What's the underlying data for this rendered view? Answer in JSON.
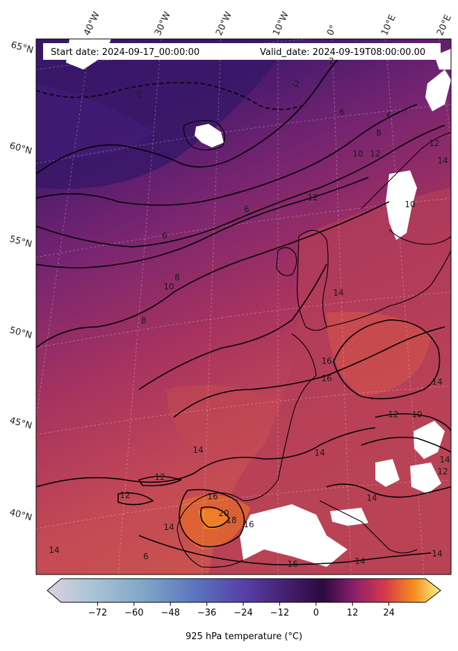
{
  "header": {
    "start_date": "Start date: 2024-09-17_00:00:00",
    "valid_date": "Valid_date: 2024-09-19T08:00:00.00"
  },
  "lon_labels": [
    "40°W",
    "30°W",
    "20°W",
    "10°W",
    "0°",
    "10°E",
    "20°E"
  ],
  "lat_labels": [
    "65°N",
    "60°N",
    "55°N",
    "50°N",
    "45°N",
    "40°N"
  ],
  "contour_labels": [
    "0",
    "-2",
    "2",
    "6",
    "6",
    "8",
    "10",
    "12",
    "6",
    "6",
    "12",
    "8",
    "10",
    "8",
    "14",
    "14",
    "16",
    "12",
    "10",
    "14",
    "14",
    "12",
    "12",
    "14",
    "16",
    "20",
    "18",
    "16",
    "14",
    "16",
    "14",
    "14",
    "12",
    "14",
    "6",
    "14",
    "16",
    "12",
    "10",
    "14"
  ],
  "colorbar": {
    "label": "925 hPa temperature ($^\\circ$C)",
    "label_display": "925 hPa temperature (°C)",
    "ticks": [
      "−72",
      "−60",
      "−48",
      "−36",
      "−24",
      "−12",
      "0",
      "12",
      "24"
    ],
    "tick_values": [
      -72,
      -60,
      -48,
      -36,
      -24,
      -12,
      0,
      12,
      24
    ],
    "vmin": -84,
    "vmax": 36,
    "colormap": "inferno-like (low: pale lilac, mid: deep purple, high: orange-yellow)"
  },
  "colors": {
    "cold_field": "#2f1660",
    "mid_field": "#8c2a6e",
    "warm_field": "#c8454f",
    "hot_field": "#e0662f"
  }
}
